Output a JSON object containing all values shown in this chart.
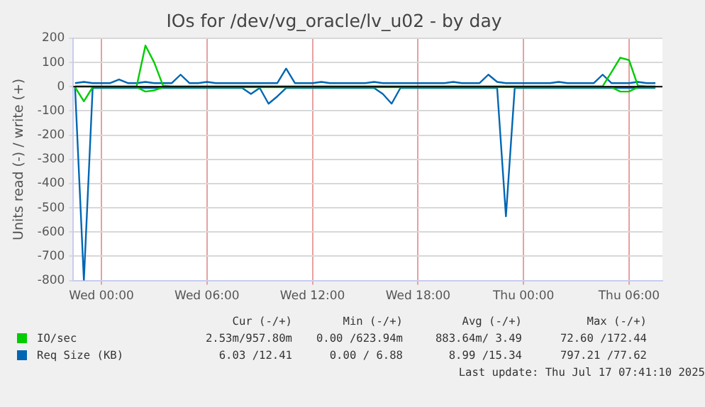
{
  "chart_data": {
    "type": "line",
    "title": "IOs for /dev/vg_oracle/lv_u02 - by day",
    "ylabel": "Units read (-) / write (+)",
    "x": [
      "2025-07-15T22:30",
      "2025-07-15T23:00",
      "2025-07-15T23:30",
      "2025-07-16T00:00",
      "2025-07-16T00:30",
      "2025-07-16T01:00",
      "2025-07-16T01:30",
      "2025-07-16T02:00",
      "2025-07-16T02:30",
      "2025-07-16T03:00",
      "2025-07-16T03:30",
      "2025-07-16T04:00",
      "2025-07-16T04:30",
      "2025-07-16T05:00",
      "2025-07-16T05:30",
      "2025-07-16T06:00",
      "2025-07-16T06:30",
      "2025-07-16T07:00",
      "2025-07-16T07:30",
      "2025-07-16T08:00",
      "2025-07-16T08:30",
      "2025-07-16T09:00",
      "2025-07-16T09:30",
      "2025-07-16T10:00",
      "2025-07-16T10:30",
      "2025-07-16T11:00",
      "2025-07-16T11:30",
      "2025-07-16T12:00",
      "2025-07-16T12:30",
      "2025-07-16T13:00",
      "2025-07-16T13:30",
      "2025-07-16T14:00",
      "2025-07-16T14:30",
      "2025-07-16T15:00",
      "2025-07-16T15:30",
      "2025-07-16T16:00",
      "2025-07-16T16:30",
      "2025-07-16T17:00",
      "2025-07-16T17:30",
      "2025-07-16T18:00",
      "2025-07-16T18:30",
      "2025-07-16T19:00",
      "2025-07-16T19:30",
      "2025-07-16T20:00",
      "2025-07-16T20:30",
      "2025-07-16T21:00",
      "2025-07-16T21:30",
      "2025-07-16T22:00",
      "2025-07-16T22:30",
      "2025-07-16T23:00",
      "2025-07-16T23:30",
      "2025-07-17T00:00",
      "2025-07-17T00:30",
      "2025-07-17T01:00",
      "2025-07-17T01:30",
      "2025-07-17T02:00",
      "2025-07-17T02:30",
      "2025-07-17T03:00",
      "2025-07-17T03:30",
      "2025-07-17T04:00",
      "2025-07-17T04:30",
      "2025-07-17T05:00",
      "2025-07-17T05:30",
      "2025-07-17T06:00",
      "2025-07-17T06:30",
      "2025-07-17T07:00",
      "2025-07-17T07:30"
    ],
    "xlim": [
      "2025-07-15T22:24",
      "2025-07-17T07:54"
    ],
    "xticks": [
      {
        "value": "2025-07-16T00:00",
        "label": "Wed 00:00"
      },
      {
        "value": "2025-07-16T06:00",
        "label": "Wed 06:00"
      },
      {
        "value": "2025-07-16T12:00",
        "label": "Wed 12:00"
      },
      {
        "value": "2025-07-16T18:00",
        "label": "Wed 18:00"
      },
      {
        "value": "2025-07-17T00:00",
        "label": "Thu 00:00"
      },
      {
        "value": "2025-07-17T06:00",
        "label": "Thu 06:00"
      }
    ],
    "ylim": [
      -800,
      200
    ],
    "yticks": [
      -800,
      -700,
      -600,
      -500,
      -400,
      -300,
      -200,
      -100,
      0,
      100,
      200
    ],
    "grid": true,
    "legend": "bottom",
    "ref_lines": [
      {
        "axis": "y",
        "value": 0,
        "color": "#000000"
      }
    ],
    "series": [
      {
        "name": "IO/sec",
        "color": "#00cc00",
        "values": [
          2,
          2,
          2,
          2,
          2,
          2,
          2,
          2,
          170,
          100,
          5,
          2,
          2,
          2,
          2,
          2,
          2,
          2,
          2,
          2,
          2,
          2,
          2,
          2,
          2,
          2,
          2,
          2,
          2,
          2,
          2,
          2,
          2,
          2,
          2,
          2,
          2,
          2,
          2,
          2,
          2,
          2,
          2,
          2,
          2,
          2,
          2,
          2,
          2,
          2,
          2,
          2,
          2,
          2,
          2,
          2,
          2,
          2,
          2,
          2,
          2,
          60,
          120,
          110,
          5,
          2,
          2
        ]
      },
      {
        "color": "#00cc00",
        "values": [
          -2,
          -60,
          -2,
          -2,
          -2,
          -2,
          -2,
          -2,
          -20,
          -15,
          -2,
          -2,
          -2,
          -2,
          -2,
          -2,
          -2,
          -2,
          -2,
          -2,
          -2,
          -2,
          -2,
          -2,
          -2,
          -2,
          -2,
          -2,
          -2,
          -2,
          -2,
          -2,
          -2,
          -2,
          -2,
          -2,
          -2,
          -2,
          -2,
          -2,
          -2,
          -2,
          -2,
          -2,
          -2,
          -2,
          -2,
          -2,
          -2,
          -2,
          -2,
          -2,
          -2,
          -2,
          -2,
          -2,
          -2,
          -2,
          -2,
          -2,
          -2,
          -2,
          -20,
          -20,
          -2,
          -2,
          -2
        ]
      },
      {
        "name": "Req Size (KB)",
        "color": "#0066b3",
        "values": [
          15,
          20,
          15,
          15,
          15,
          30,
          15,
          15,
          20,
          15,
          15,
          15,
          50,
          15,
          15,
          20,
          15,
          15,
          15,
          15,
          15,
          15,
          15,
          15,
          75,
          15,
          15,
          15,
          20,
          15,
          15,
          15,
          15,
          15,
          20,
          15,
          15,
          15,
          15,
          15,
          15,
          15,
          15,
          20,
          15,
          15,
          15,
          50,
          20,
          15,
          15,
          15,
          15,
          15,
          15,
          20,
          15,
          15,
          15,
          15,
          50,
          15,
          15,
          15,
          20,
          15,
          15
        ]
      },
      {
        "color": "#0066b3",
        "values": [
          -5,
          -800,
          -5,
          -5,
          -5,
          -5,
          -5,
          -5,
          -5,
          -5,
          -5,
          -5,
          -5,
          -5,
          -5,
          -5,
          -5,
          -5,
          -5,
          -5,
          -30,
          -5,
          -70,
          -40,
          -5,
          -5,
          -5,
          -5,
          -5,
          -5,
          -5,
          -5,
          -5,
          -5,
          -5,
          -30,
          -70,
          -5,
          -5,
          -5,
          -5,
          -5,
          -5,
          -5,
          -5,
          -5,
          -5,
          -5,
          -5,
          -535,
          -5,
          -5,
          -5,
          -5,
          -5,
          -5,
          -5,
          -5,
          -5,
          -5,
          -5,
          -5,
          -5,
          -5,
          -5,
          -5,
          -5
        ]
      }
    ],
    "annotations": [
      "Cur (-/+)",
      "Min (-/+)",
      "Avg (-/+)",
      "Max (-/+)",
      "2.53m/957.80m",
      "0.00 /623.94m",
      "883.64m/ 3.49",
      "72.60 /172.44",
      "6.03 /12.41",
      "0.00 / 6.88",
      "8.99 /15.34",
      "797.21 /77.62",
      "Last update: Thu Jul 17 07:41:10 2025"
    ]
  }
}
